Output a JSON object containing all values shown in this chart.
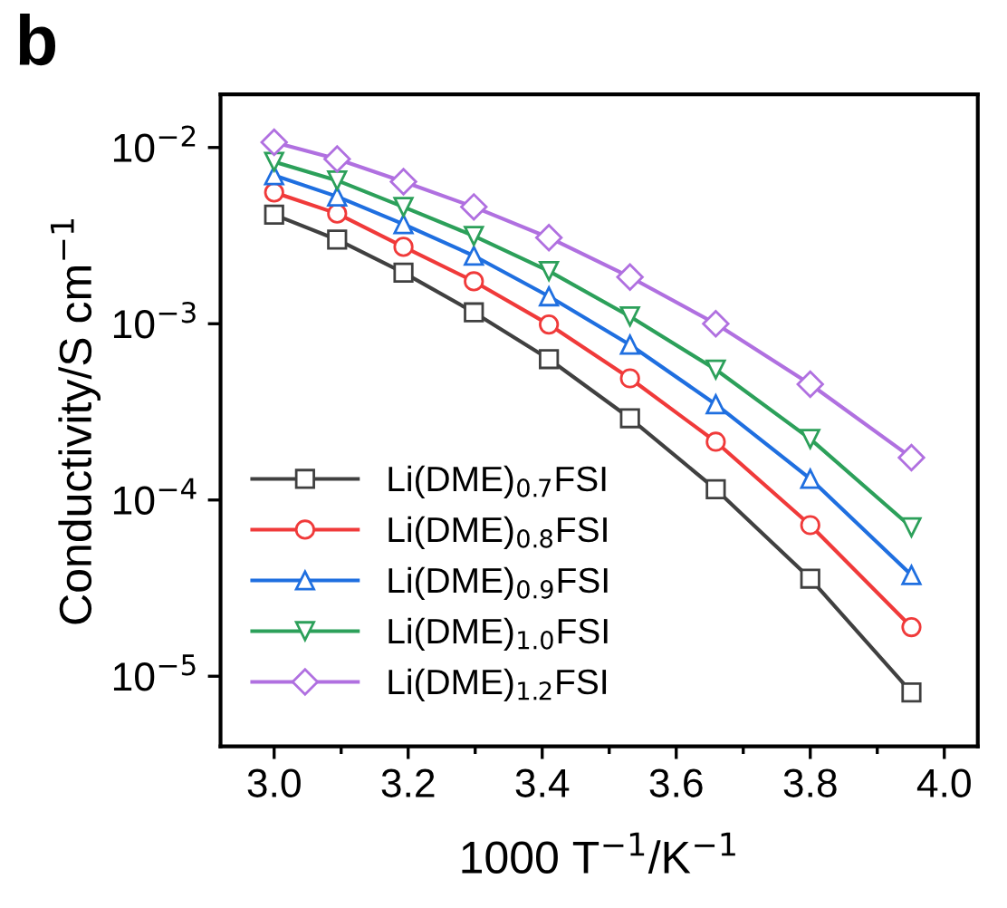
{
  "chart_data": {
    "type": "line",
    "xlabel": "1000 T$^{−1}$/K$^{−1}$",
    "ylabel": "Conductivity/S cm$^{−1}$",
    "annotations": [
      "b"
    ],
    "log": "y",
    "xlim": [
      2.92,
      4.05
    ],
    "xticks": [
      {
        "value": 3.0,
        "label": "3.0"
      },
      3.2,
      3.4,
      3.6,
      3.8,
      {
        "value": 4.0,
        "label": "4.0"
      }
    ],
    "ylim": [
      4e-06,
      0.02
    ],
    "yticks": [
      {
        "value": 1e-05,
        "label": "10$^{−5}$"
      },
      {
        "value": 0.0001,
        "label": "10$^{−4}$"
      },
      {
        "value": 0.001,
        "label": "10$^{−3}$"
      },
      {
        "value": 0.01,
        "label": "10$^{−2}$"
      }
    ],
    "x": [
      3.0,
      3.094,
      3.193,
      3.298,
      3.41,
      3.531,
      3.659,
      3.8,
      3.951
    ],
    "legend": "bottom left",
    "grid": false,
    "line_style": "solid",
    "series": [
      {
        "name": "Li(DME)$_{0.7}$FSI",
        "color": "#404040",
        "marker": "square",
        "values": [
          0.00416,
          0.003,
          0.00195,
          0.00116,
          0.00063,
          0.000291,
          0.000115,
          3.58e-05,
          8.1e-06
        ]
      },
      {
        "name": "Li(DME)$_{0.8}$FSI",
        "color": "#f03a3a",
        "marker": "circle",
        "values": [
          0.00556,
          0.00422,
          0.00273,
          0.00174,
          0.00099,
          0.00049,
          0.000214,
          7.2e-05,
          1.9e-05
        ]
      },
      {
        "name": "Li(DME)$_{0.9}$FSI",
        "color": "#1f6fe0",
        "marker": "triangle",
        "values": [
          0.00695,
          0.00527,
          0.00367,
          0.00243,
          0.00143,
          0.00076,
          0.000349,
          0.000132,
          3.75e-05
        ]
      },
      {
        "name": "Li(DME)$_{1.0}$FSI",
        "color": "#2ca05a",
        "marker": "triangle_down",
        "values": [
          0.0083,
          0.0065,
          0.0046,
          0.00315,
          0.00199,
          0.0011,
          0.00055,
          0.000222,
          7e-05
        ]
      },
      {
        "name": "Li(DME)$_{1.2}$FSI",
        "color": "#b070e0",
        "marker": "diamond",
        "values": [
          0.0107,
          0.0086,
          0.0064,
          0.0046,
          0.00308,
          0.00184,
          0.001,
          0.000454,
          0.000174
        ]
      }
    ]
  }
}
